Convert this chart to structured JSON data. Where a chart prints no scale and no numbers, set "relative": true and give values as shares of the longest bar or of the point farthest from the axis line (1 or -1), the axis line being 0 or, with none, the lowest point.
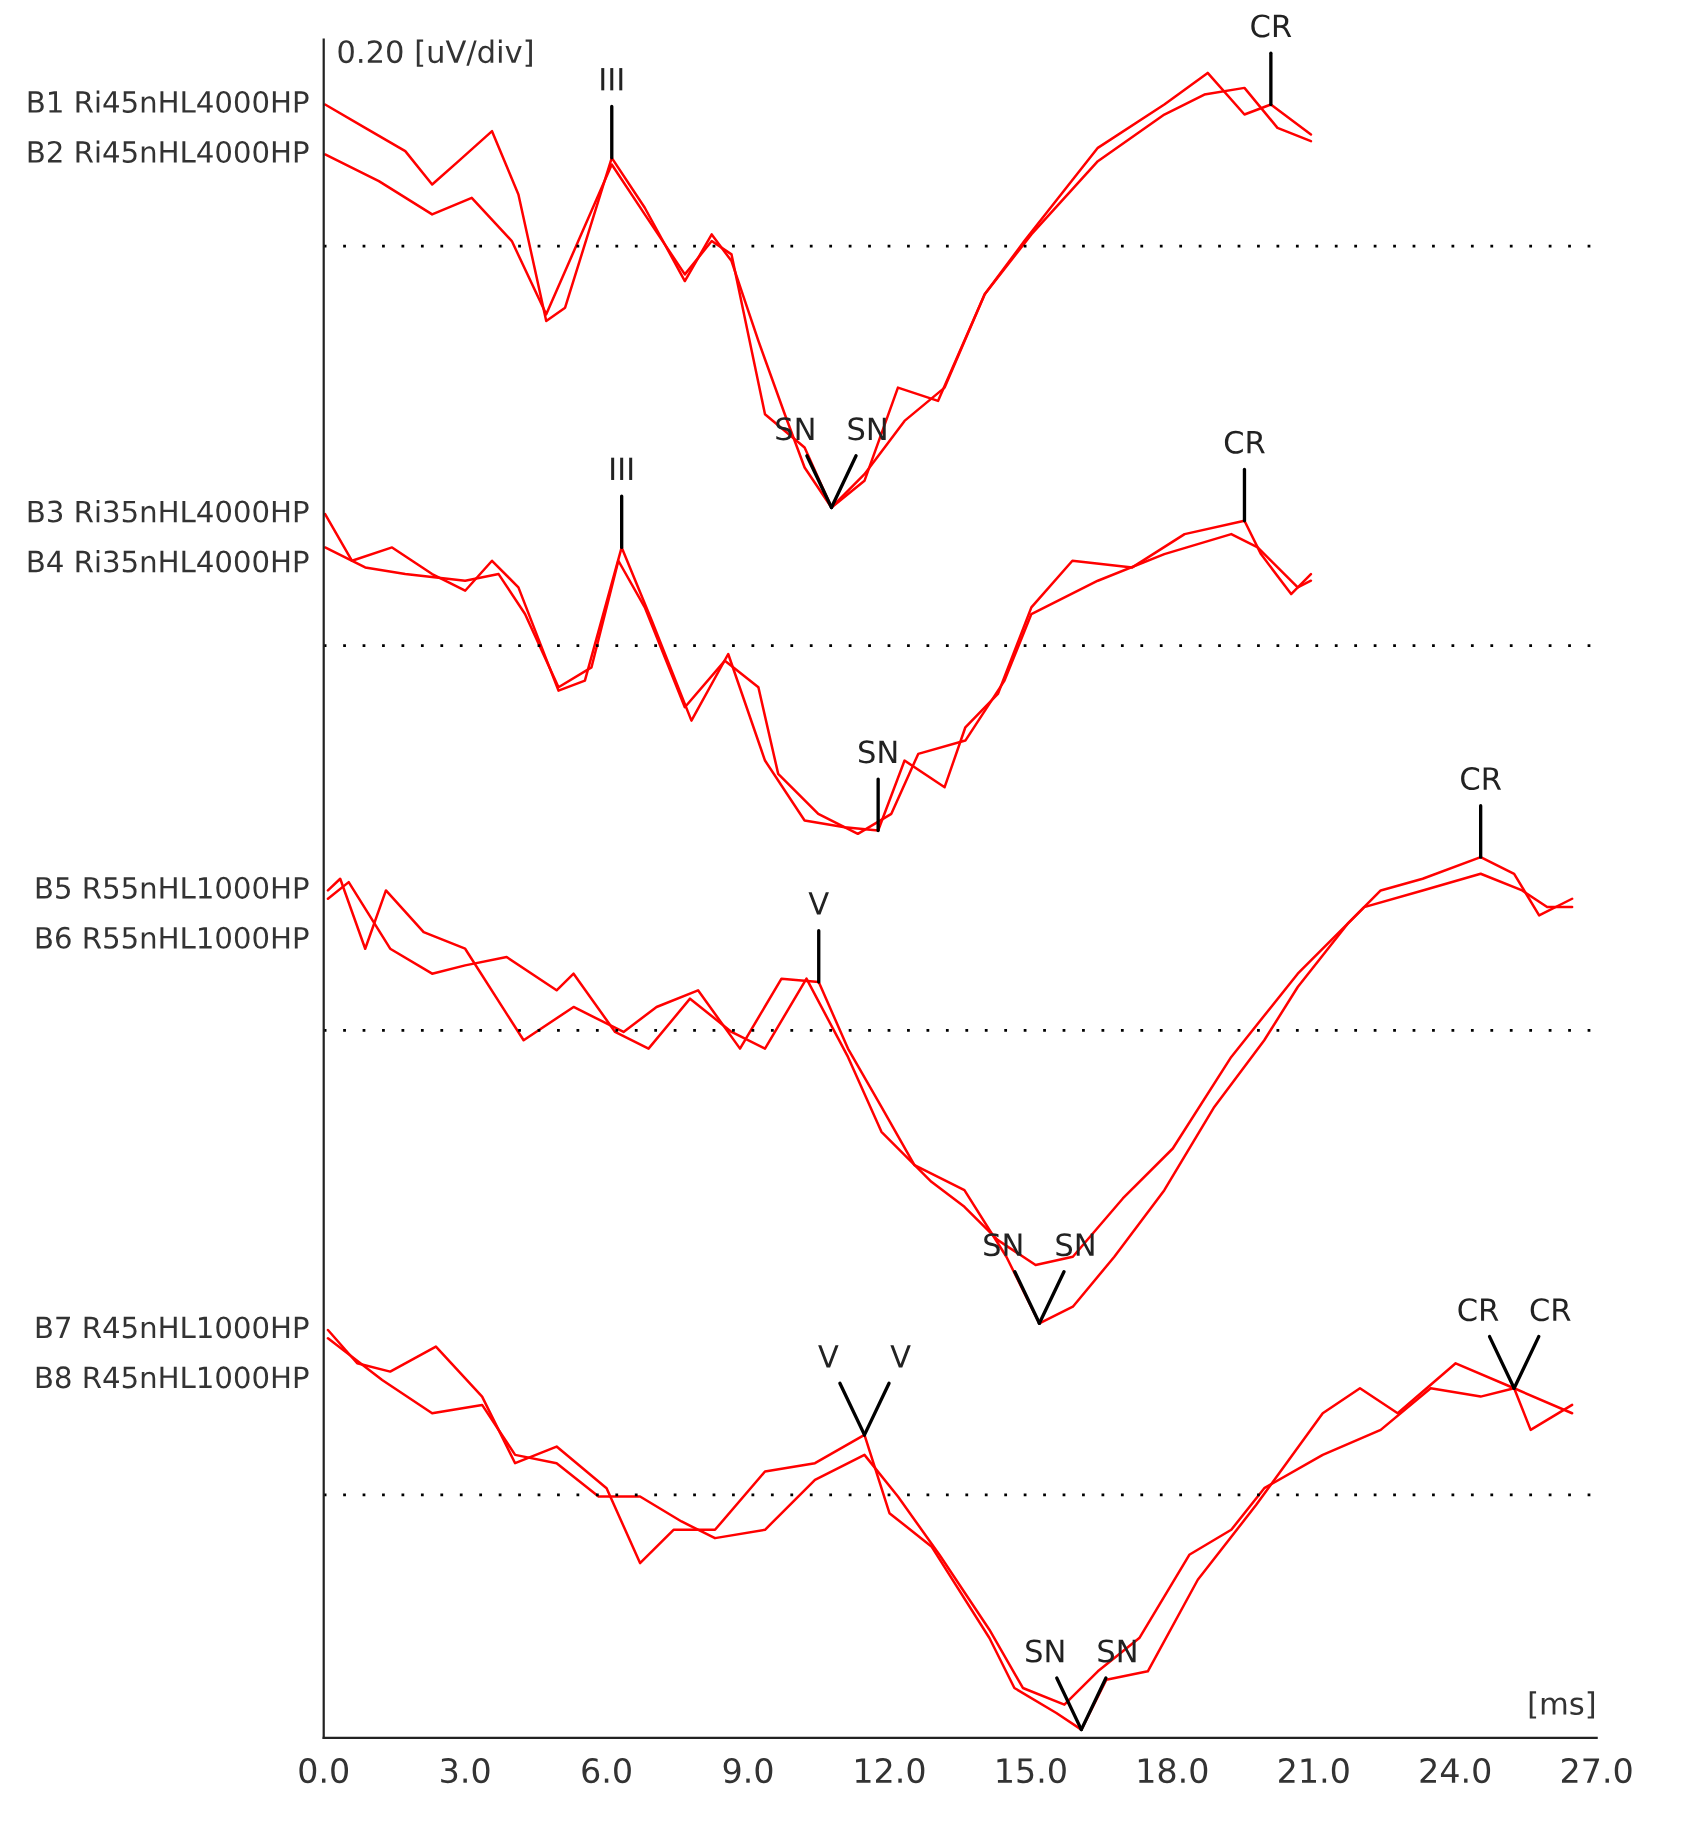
{
  "chart_data": {
    "type": "line",
    "relative": true,
    "xlabel": "[ms]",
    "ylabel": "0.20 [uV/div]",
    "xlim": [
      0,
      27
    ],
    "xticks": [
      {
        "value": 0,
        "label": "0.0"
      },
      {
        "value": 3,
        "label": "3.0"
      },
      {
        "value": 6,
        "label": "6.0"
      },
      {
        "value": 9,
        "label": "9.0"
      },
      {
        "value": 12,
        "label": "12.0"
      },
      {
        "value": 15,
        "label": "15.0"
      },
      {
        "value": 18,
        "label": "18.0"
      },
      {
        "value": 21,
        "label": "21.0"
      },
      {
        "value": 24,
        "label": "24.0"
      },
      {
        "value": 27,
        "label": "27.0"
      }
    ],
    "grid": false,
    "legend": false,
    "marker": "none",
    "line_style": "solid",
    "series": [
      {
        "name": "B1 Ri45nHL4000HP",
        "color": "#ff0000",
        "x": [
          0.03,
          0.88,
          1.73,
          2.3,
          2.86,
          3.57,
          4.13,
          4.72,
          5.12,
          6.11,
          6.81,
          7.66,
          8.23,
          8.65,
          9.22,
          9.78,
          10.2,
          10.77,
          11.47,
          12.18,
          13.03,
          14.02,
          14.86,
          16.42,
          17.83,
          18.75,
          19.53,
          20.09,
          20.94
        ],
        "values": [
          0.981,
          0.967,
          0.953,
          0.933,
          0.947,
          0.965,
          0.927,
          0.851,
          0.859,
          0.949,
          0.919,
          0.875,
          0.903,
          0.887,
          0.839,
          0.795,
          0.763,
          0.739,
          0.755,
          0.811,
          0.803,
          0.867,
          0.899,
          0.955,
          0.981,
          1.0,
          0.975,
          0.981,
          0.963
        ]
      },
      {
        "name": "B2 Ri45nHL4000HP",
        "color": "#ff0000",
        "x": [
          0.03,
          1.17,
          2.3,
          3.14,
          3.99,
          4.72,
          5.4,
          6.11,
          6.81,
          7.66,
          8.23,
          8.65,
          9.36,
          10.2,
          10.77,
          11.47,
          12.32,
          13.17,
          14.02,
          15.01,
          16.42,
          17.83,
          18.68,
          19.53,
          20.23,
          20.94
        ],
        "values": [
          0.951,
          0.935,
          0.915,
          0.925,
          0.899,
          0.855,
          0.899,
          0.945,
          0.915,
          0.879,
          0.899,
          0.891,
          0.795,
          0.775,
          0.739,
          0.759,
          0.791,
          0.811,
          0.867,
          0.903,
          0.947,
          0.975,
          0.987,
          0.991,
          0.967,
          0.959
        ]
      },
      {
        "name": "B3 Ri35nHL4000HP",
        "color": "#ff0000",
        "x": [
          0.03,
          0.6,
          1.45,
          2.3,
          3.0,
          3.57,
          4.13,
          4.98,
          5.54,
          6.32,
          6.96,
          7.8,
          8.58,
          9.36,
          10.2,
          11.05,
          11.76,
          12.32,
          13.17,
          13.61,
          14.3,
          15.01,
          15.88,
          17.15,
          18.26,
          19.53,
          19.88,
          20.52,
          20.94
        ],
        "values": [
          0.735,
          0.707,
          0.715,
          0.699,
          0.689,
          0.707,
          0.691,
          0.629,
          0.635,
          0.715,
          0.671,
          0.611,
          0.651,
          0.587,
          0.551,
          0.547,
          0.545,
          0.587,
          0.571,
          0.607,
          0.627,
          0.679,
          0.707,
          0.703,
          0.723,
          0.731,
          0.711,
          0.687,
          0.699
        ]
      },
      {
        "name": "B4 Ri35nHL4000HP",
        "color": "#ff0000",
        "x": [
          0.03,
          0.88,
          1.73,
          3.0,
          3.71,
          4.27,
          4.98,
          5.68,
          6.25,
          6.81,
          7.66,
          8.51,
          9.22,
          9.64,
          10.49,
          11.33,
          12.04,
          12.61,
          13.61,
          14.44,
          15.01,
          16.42,
          17.83,
          19.25,
          19.81,
          20.66,
          20.94
        ],
        "values": [
          0.715,
          0.703,
          0.699,
          0.695,
          0.699,
          0.675,
          0.631,
          0.643,
          0.707,
          0.679,
          0.619,
          0.647,
          0.631,
          0.579,
          0.555,
          0.543,
          0.555,
          0.591,
          0.599,
          0.635,
          0.675,
          0.695,
          0.711,
          0.723,
          0.715,
          0.691,
          0.695
        ]
      },
      {
        "name": "B5 R55nHL1000HP",
        "color": "#ff0000",
        "x": [
          0.09,
          0.35,
          0.88,
          1.32,
          2.12,
          3.0,
          4.24,
          5.3,
          6.36,
          7.06,
          7.94,
          8.83,
          9.71,
          10.5,
          11.12,
          11.83,
          12.53,
          13.59,
          14.48,
          15.18,
          15.89,
          16.77,
          17.83,
          18.89,
          19.95,
          20.66,
          21.72,
          22.42,
          23.31,
          24.54,
          25.25,
          25.78,
          26.48
        ],
        "values": [
          0.509,
          0.516,
          0.474,
          0.509,
          0.484,
          0.474,
          0.419,
          0.439,
          0.424,
          0.439,
          0.449,
          0.414,
          0.456,
          0.454,
          0.414,
          0.379,
          0.344,
          0.329,
          0.289,
          0.249,
          0.259,
          0.289,
          0.329,
          0.379,
          0.419,
          0.451,
          0.489,
          0.509,
          0.516,
          0.529,
          0.519,
          0.494,
          0.504
        ]
      },
      {
        "name": "B6 R55nHL1000HP",
        "color": "#ff0000",
        "x": [
          0.09,
          0.53,
          1.41,
          2.3,
          3.0,
          3.88,
          4.94,
          5.3,
          6.18,
          6.89,
          7.77,
          8.65,
          9.36,
          10.24,
          11.12,
          11.83,
          12.89,
          13.59,
          14.3,
          15.1,
          15.89,
          16.95,
          18.01,
          19.25,
          20.66,
          22.07,
          23.31,
          24.54,
          25.42,
          25.95,
          26.48
        ],
        "values": [
          0.504,
          0.514,
          0.474,
          0.459,
          0.464,
          0.469,
          0.449,
          0.459,
          0.424,
          0.414,
          0.444,
          0.424,
          0.414,
          0.456,
          0.409,
          0.364,
          0.334,
          0.319,
          0.299,
          0.284,
          0.289,
          0.324,
          0.354,
          0.409,
          0.459,
          0.499,
          0.509,
          0.519,
          0.509,
          0.499,
          0.499
        ]
      },
      {
        "name": "B7 R45nHL1000HP",
        "color": "#ff0000",
        "x": [
          0.09,
          0.71,
          1.41,
          2.38,
          3.36,
          4.06,
          4.94,
          6.0,
          6.71,
          7.42,
          8.3,
          9.36,
          10.42,
          11.47,
          12.0,
          12.89,
          14.12,
          14.65,
          15.54,
          16.07,
          16.6,
          17.48,
          18.54,
          19.78,
          21.19,
          21.98,
          22.78,
          24.01,
          25.25,
          25.6,
          26.48
        ],
        "values": [
          0.245,
          0.225,
          0.22,
          0.235,
          0.205,
          0.165,
          0.175,
          0.15,
          0.105,
          0.125,
          0.125,
          0.16,
          0.165,
          0.182,
          0.135,
          0.115,
          0.06,
          0.03,
          0.015,
          0.005,
          0.035,
          0.04,
          0.095,
          0.14,
          0.195,
          0.21,
          0.195,
          0.225,
          0.21,
          0.185,
          0.2
        ]
      },
      {
        "name": "B8 R45nHL1000HP",
        "color": "#ff0000",
        "x": [
          0.09,
          1.24,
          2.3,
          3.36,
          4.06,
          4.94,
          5.83,
          6.71,
          7.59,
          8.3,
          9.36,
          10.42,
          11.47,
          12.18,
          13.06,
          14.12,
          14.83,
          15.71,
          16.42,
          17.3,
          18.36,
          19.25,
          19.95,
          21.19,
          22.42,
          23.48,
          24.54,
          25.25,
          26.48
        ],
        "values": [
          0.24,
          0.215,
          0.195,
          0.2,
          0.17,
          0.165,
          0.145,
          0.145,
          0.13,
          0.12,
          0.125,
          0.155,
          0.17,
          0.145,
          0.11,
          0.065,
          0.03,
          0.02,
          0.04,
          0.06,
          0.11,
          0.125,
          0.15,
          0.17,
          0.185,
          0.21,
          0.205,
          0.21,
          0.195
        ]
      }
    ],
    "ref_lines": [
      {
        "axis": "y",
        "value": 0.896,
        "color": "#000000",
        "line_style": "dotted"
      },
      {
        "axis": "y",
        "value": 0.656,
        "color": "#000000",
        "line_style": "dotted"
      },
      {
        "axis": "y",
        "value": 0.425,
        "color": "#000000",
        "line_style": "dotted"
      },
      {
        "axis": "y",
        "value": 0.146,
        "color": "#000000",
        "line_style": "dotted"
      }
    ],
    "annotations": [
      {
        "text": "III",
        "x": 6.11,
        "y": 0.949
      },
      {
        "text": "SN",
        "x": 10.77,
        "y": 0.739
      },
      {
        "text": "SN",
        "x": 10.77,
        "y": 0.739
      },
      {
        "text": "CR",
        "x": 20.09,
        "y": 0.981
      },
      {
        "text": "III",
        "x": 6.32,
        "y": 0.715
      },
      {
        "text": "SN",
        "x": 11.76,
        "y": 0.545
      },
      {
        "text": "CR",
        "x": 19.53,
        "y": 0.731
      },
      {
        "text": "V",
        "x": 10.5,
        "y": 0.454
      },
      {
        "text": "SN",
        "x": 15.18,
        "y": 0.249
      },
      {
        "text": "SN",
        "x": 15.18,
        "y": 0.249
      },
      {
        "text": "CR",
        "x": 24.54,
        "y": 0.529
      },
      {
        "text": "V",
        "x": 11.47,
        "y": 0.182
      },
      {
        "text": "V",
        "x": 11.47,
        "y": 0.182
      },
      {
        "text": "SN",
        "x": 16.07,
        "y": 0.005
      },
      {
        "text": "SN",
        "x": 16.07,
        "y": 0.005
      },
      {
        "text": "CR",
        "x": 25.25,
        "y": 0.21
      },
      {
        "text": "CR",
        "x": 25.25,
        "y": 0.21
      }
    ]
  }
}
